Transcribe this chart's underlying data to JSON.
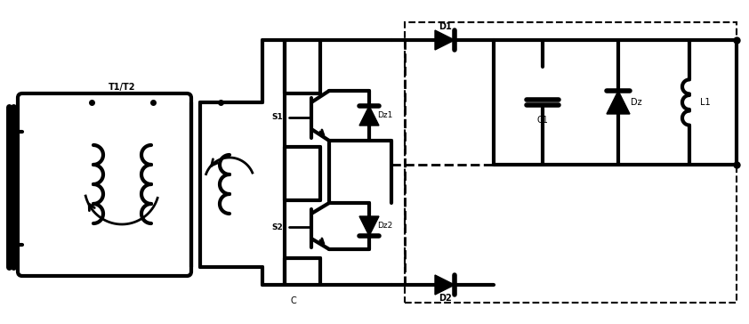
{
  "bg_color": "#ffffff",
  "line_color": "#000000",
  "lw": 2.0,
  "lw2": 3.0,
  "fig_width": 8.42,
  "fig_height": 3.64,
  "labels": {
    "T1_T2": "T1/T2",
    "D1": "D1",
    "D2": "D2",
    "S1": "S1",
    "S2": "S2",
    "Dz1": "Dz1",
    "Dz2": "Dz2",
    "Dz3": "Dz",
    "C1": "C1",
    "L1": "L1",
    "C": "C"
  }
}
